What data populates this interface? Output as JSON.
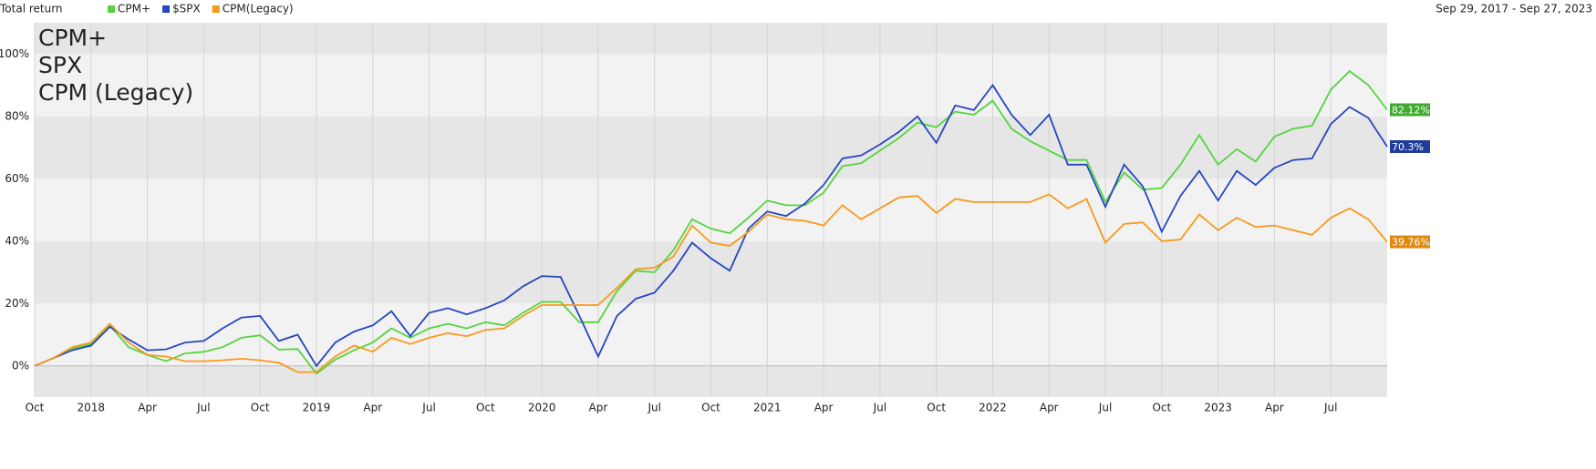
{
  "chart_data": {
    "type": "line",
    "title": "Total return",
    "subtitle": "Sep 29, 2017 - Sep 27, 2023",
    "annotations": [
      {
        "text": "CPM+",
        "color": "#3cc72c"
      },
      {
        "text": "SPX",
        "color": "#1a2db5"
      },
      {
        "text": "CPM (Legacy)",
        "color": "#f5940f"
      }
    ],
    "categories": [
      "Oct",
      null,
      null,
      "2018",
      null,
      null,
      "Apr",
      null,
      null,
      "Jul",
      null,
      null,
      "Oct",
      null,
      null,
      "2019",
      null,
      null,
      "Apr",
      null,
      null,
      "Jul",
      null,
      null,
      "Oct",
      null,
      null,
      "2020",
      null,
      null,
      "Apr",
      null,
      null,
      "Jul",
      null,
      null,
      "Oct",
      null,
      null,
      "2021",
      null,
      null,
      "Apr",
      null,
      null,
      "Jul",
      null,
      null,
      "Oct",
      null,
      null,
      "2022",
      null,
      null,
      "Apr",
      null,
      null,
      "Jul",
      null,
      null,
      "Oct",
      null,
      null,
      "2023",
      null,
      null,
      "Apr",
      null,
      null,
      "Jul",
      null,
      null,
      null
    ],
    "series": [
      {
        "name": "CPM+",
        "color": "#55d43f",
        "label_color": "#3faa2f",
        "values": [
          0,
          2.5,
          5.5,
          7,
          13,
          6,
          3.5,
          1.5,
          4,
          4.5,
          6,
          9,
          9.8,
          5.2,
          5.4,
          -2.5,
          2,
          5,
          7.5,
          12,
          9,
          12,
          13.5,
          12,
          14,
          13,
          17,
          20.5,
          20.5,
          14,
          14,
          24,
          30.5,
          30,
          37,
          47,
          44,
          42.5,
          47.5,
          53,
          51.5,
          51.5,
          55.5,
          64,
          65,
          69,
          73,
          78,
          76.5,
          81.5,
          80.5,
          85,
          76,
          72,
          69,
          66,
          66,
          52.5,
          62,
          56.5,
          57,
          64.5,
          74,
          64.5,
          69.5,
          65.5,
          73.5,
          76,
          77,
          88.5,
          94.5,
          90,
          82.12
        ],
        "value_labels": [
          null,
          null,
          null,
          null,
          null,
          null,
          null,
          null,
          null,
          null,
          null,
          null,
          null,
          null,
          null,
          null,
          null,
          null,
          null,
          null,
          null,
          null,
          null,
          null,
          null,
          null,
          null,
          null,
          null,
          null,
          null,
          null,
          null,
          null,
          null,
          null,
          null,
          null,
          null,
          null,
          null,
          null,
          null,
          null,
          null,
          null,
          null,
          null,
          null,
          null,
          null,
          null,
          null,
          null,
          null,
          null,
          null,
          null,
          null,
          null,
          null,
          null,
          null,
          null,
          null,
          null,
          null,
          null,
          null,
          null,
          null,
          null,
          "82.12%"
        ]
      },
      {
        "name": "$SPX",
        "color": "#2546c0",
        "label_color": "#1f3c9c",
        "values": [
          0,
          2.5,
          5,
          6.5,
          12.5,
          8.5,
          5,
          5.3,
          7.5,
          8,
          12,
          15.5,
          16,
          8,
          10,
          0,
          7.5,
          11,
          13,
          17.5,
          9.5,
          17,
          18.5,
          16.5,
          18.5,
          21,
          25.5,
          28.8,
          28.5,
          16,
          3,
          16,
          21.5,
          23.5,
          30.5,
          39.5,
          34.5,
          30.5,
          44,
          49.5,
          48,
          52,
          58,
          66.5,
          67.5,
          71,
          75,
          80,
          71.5,
          83.5,
          82,
          90,
          80.5,
          74,
          80.5,
          64.5,
          64.5,
          51,
          64.5,
          57.5,
          43,
          54.5,
          62.5,
          53,
          62.5,
          58,
          63.5,
          66,
          66.5,
          77.5,
          83,
          79.5,
          70.3
        ],
        "value_labels": [
          null,
          null,
          null,
          null,
          null,
          null,
          null,
          null,
          null,
          null,
          null,
          null,
          null,
          null,
          null,
          null,
          null,
          null,
          null,
          null,
          null,
          null,
          null,
          null,
          null,
          null,
          null,
          null,
          null,
          null,
          null,
          null,
          null,
          null,
          null,
          null,
          null,
          null,
          null,
          null,
          null,
          null,
          null,
          null,
          null,
          null,
          null,
          null,
          null,
          null,
          null,
          null,
          null,
          null,
          null,
          null,
          null,
          null,
          null,
          null,
          null,
          null,
          null,
          null,
          null,
          null,
          null,
          null,
          null,
          null,
          null,
          null,
          "70.3%"
        ]
      },
      {
        "name": "CPM(Legacy)",
        "color": "#f79a1c",
        "label_color": "#e0890f",
        "values": [
          0,
          2.5,
          6,
          7.5,
          13.5,
          7.5,
          3.5,
          3,
          1.5,
          1.5,
          1.8,
          2.3,
          1.8,
          1,
          -2,
          -2,
          3,
          6.5,
          4.5,
          9,
          7,
          9,
          10.5,
          9.5,
          11.5,
          12,
          16,
          19.5,
          19.5,
          19.5,
          19.5,
          25,
          31,
          31.5,
          35,
          45,
          39.5,
          38.5,
          43,
          48.5,
          47,
          46.5,
          45,
          51.5,
          47,
          50.5,
          54,
          54.5,
          49,
          53.5,
          52.5,
          52.5,
          52.5,
          52.5,
          55,
          50.5,
          53.5,
          39.5,
          45.5,
          46,
          40,
          40.5,
          48.5,
          43.5,
          47.5,
          44.5,
          45,
          43.5,
          42,
          47.5,
          50.5,
          47,
          39.76
        ],
        "value_labels": [
          null,
          null,
          null,
          null,
          null,
          null,
          null,
          null,
          null,
          null,
          null,
          null,
          null,
          null,
          null,
          null,
          null,
          null,
          null,
          null,
          null,
          null,
          null,
          null,
          null,
          null,
          null,
          null,
          null,
          null,
          null,
          null,
          null,
          null,
          null,
          null,
          null,
          null,
          null,
          null,
          null,
          null,
          null,
          null,
          null,
          null,
          null,
          null,
          null,
          null,
          null,
          null,
          null,
          null,
          null,
          null,
          null,
          null,
          null,
          null,
          null,
          null,
          null,
          null,
          null,
          null,
          null,
          null,
          null,
          null,
          null,
          null,
          "39.76%"
        ]
      }
    ],
    "ylim": [
      -10,
      110
    ],
    "yticks": [
      {
        "value": 0,
        "label": "0%"
      },
      {
        "value": 20,
        "label": "20%"
      },
      {
        "value": 40,
        "label": "40%"
      },
      {
        "value": 60,
        "label": "60%"
      },
      {
        "value": 80,
        "label": "80%"
      },
      {
        "value": 100,
        "label": "100%"
      }
    ],
    "grid": true
  }
}
